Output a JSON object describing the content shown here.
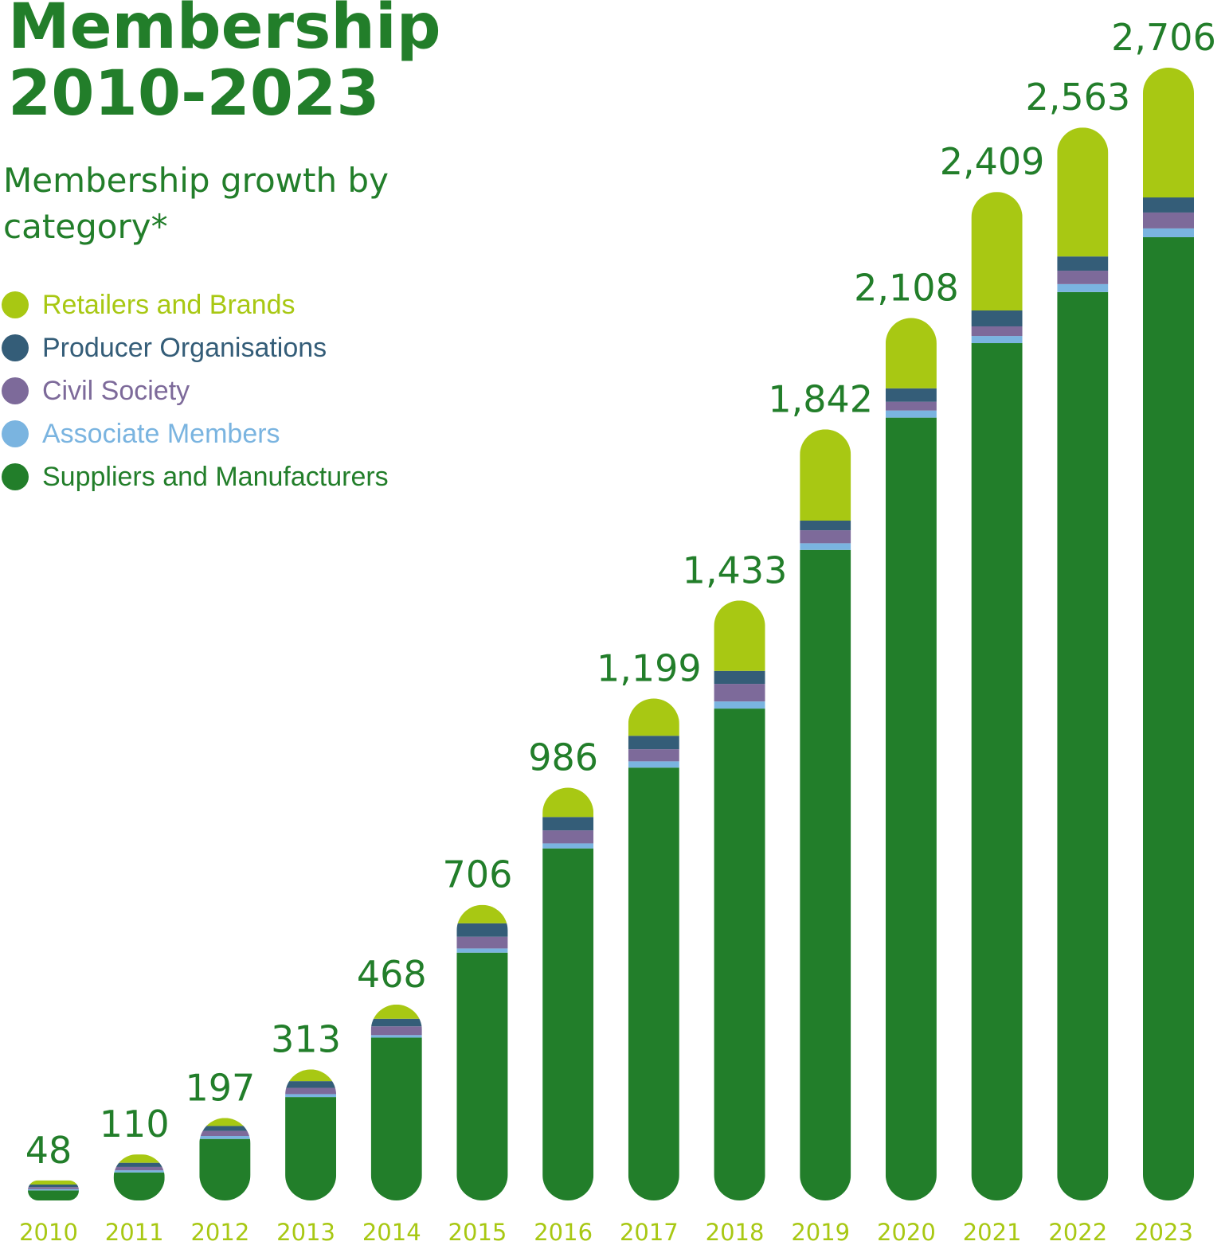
{
  "chart_data": {
    "type": "stacked-bar",
    "title": "Membership 2010-2023",
    "subtitle": "Membership growth by category*",
    "categories": [
      "2010",
      "2011",
      "2012",
      "2013",
      "2014",
      "2015",
      "2016",
      "2017",
      "2018",
      "2019",
      "2020",
      "2021",
      "2022",
      "2023"
    ],
    "series": [
      {
        "name": "Retailers and Brands",
        "color": "#a8c813",
        "values": [
          10,
          20,
          19,
          28,
          34,
          44,
          70,
          89,
          168,
          218,
          168,
          283,
          308,
          310
        ]
      },
      {
        "name": "Producer Organisations",
        "color": "#345d78",
        "values": [
          6,
          10,
          12,
          16,
          18,
          32,
          32,
          32,
          31,
          23,
          32,
          38,
          34,
          36
        ]
      },
      {
        "name": "Civil Society",
        "color": "#7d6a9a",
        "values": [
          5,
          8,
          12,
          15,
          21,
          28,
          31,
          29,
          42,
          31,
          21,
          23,
          32,
          38
        ]
      },
      {
        "name": "Associate Members",
        "color": "#7ab4e0",
        "values": [
          3,
          5,
          7,
          7,
          6,
          10,
          12,
          15,
          17,
          16,
          17,
          17,
          19,
          21
        ]
      },
      {
        "name": "Suppliers and Manufacturers",
        "color": "#227e2a",
        "values": [
          24,
          67,
          147,
          247,
          389,
          592,
          841,
          1034,
          1175,
          1554,
          1870,
          2048,
          2170,
          2301
        ]
      }
    ],
    "totals": [
      48,
      110,
      197,
      313,
      468,
      706,
      986,
      1199,
      1433,
      1842,
      2108,
      2409,
      2563,
      2706
    ],
    "totals_labels": [
      "48",
      "110",
      "197",
      "313",
      "468",
      "706",
      "986",
      "1,199",
      "1,433",
      "1,842",
      "2,108",
      "2,409",
      "2,563",
      "2,706"
    ]
  }
}
